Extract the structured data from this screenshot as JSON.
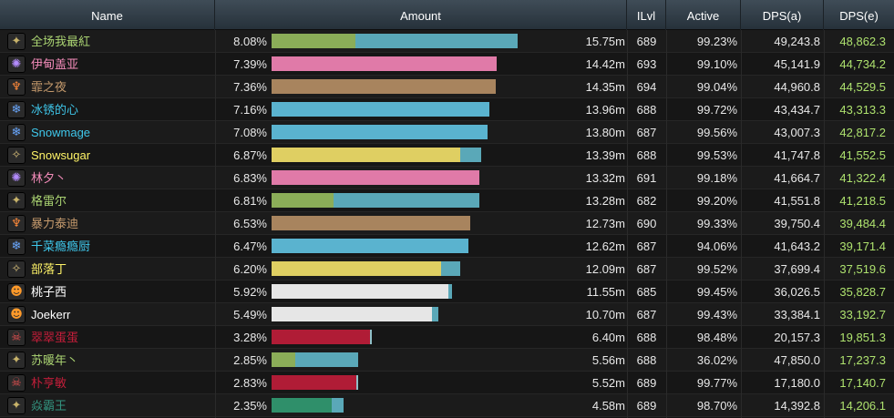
{
  "columns": {
    "name": "Name",
    "amount": "Amount",
    "ilvl": "ILvl",
    "active": "Active",
    "dps_a": "DPS(a)",
    "dps_e": "DPS(e)"
  },
  "players": [
    {
      "name": "全场我最紅",
      "pct": "8.08%",
      "total": "15.75m",
      "ilvl": "689",
      "active": "99.23%",
      "dps_a": "49,243.8",
      "dps_e": "48,862.3",
      "name_color": "#aad372",
      "icon": "rogue-icon",
      "icon_glyph": "✦",
      "icon_color": "#c8b36a",
      "share": 0.0808,
      "split": [
        0.34,
        0.66
      ],
      "bar_colors": [
        "#8bad58",
        "#5aa8b8"
      ]
    },
    {
      "name": "伊甸盖亚",
      "pct": "7.39%",
      "total": "14.42m",
      "ilvl": "693",
      "active": "99.10%",
      "dps_a": "45,141.9",
      "dps_e": "44,734.2",
      "name_color": "#f48cba",
      "icon": "arcane-icon",
      "icon_glyph": "✺",
      "icon_color": "#b48cff",
      "share": 0.0739,
      "split": [
        1.0
      ],
      "bar_colors": [
        "#e07aa8"
      ]
    },
    {
      "name": "霏之夜",
      "pct": "7.36%",
      "total": "14.35m",
      "ilvl": "694",
      "active": "99.04%",
      "dps_a": "44,960.8",
      "dps_e": "44,529.5",
      "name_color": "#c69b6d",
      "icon": "demon-icon",
      "icon_glyph": "♆",
      "icon_color": "#ff8a3a",
      "share": 0.0736,
      "split": [
        1.0
      ],
      "bar_colors": [
        "#a8845e"
      ]
    },
    {
      "name": "冰锈的心",
      "pct": "7.16%",
      "total": "13.96m",
      "ilvl": "688",
      "active": "99.72%",
      "dps_a": "43,434.7",
      "dps_e": "43,313.3",
      "name_color": "#3fc7eb",
      "icon": "frost-icon",
      "icon_glyph": "❄",
      "icon_color": "#6aa8ff",
      "share": 0.0716,
      "split": [
        1.0
      ],
      "bar_colors": [
        "#5ab3cf"
      ]
    },
    {
      "name": "Snowmage",
      "pct": "7.08%",
      "total": "13.80m",
      "ilvl": "687",
      "active": "99.56%",
      "dps_a": "43,007.3",
      "dps_e": "42,817.2",
      "name_color": "#3fc7eb",
      "icon": "frost-icon",
      "icon_glyph": "❄",
      "icon_color": "#6aa8ff",
      "share": 0.0708,
      "split": [
        1.0
      ],
      "bar_colors": [
        "#5ab3cf"
      ]
    },
    {
      "name": "Snowsugar",
      "pct": "6.87%",
      "total": "13.39m",
      "ilvl": "688",
      "active": "99.53%",
      "dps_a": "41,747.8",
      "dps_e": "41,552.5",
      "name_color": "#fff468",
      "icon": "rogue-icon",
      "icon_glyph": "✧",
      "icon_color": "#d9c07a",
      "share": 0.0687,
      "split": [
        0.9,
        0.1
      ],
      "bar_colors": [
        "#dfcf62",
        "#5aa8b8"
      ]
    },
    {
      "name": "林夕丶",
      "pct": "6.83%",
      "total": "13.32m",
      "ilvl": "691",
      "active": "99.18%",
      "dps_a": "41,664.7",
      "dps_e": "41,322.4",
      "name_color": "#f48cba",
      "icon": "arcane-icon",
      "icon_glyph": "✺",
      "icon_color": "#b48cff",
      "share": 0.0683,
      "split": [
        1.0
      ],
      "bar_colors": [
        "#e07aa8"
      ]
    },
    {
      "name": "格雷尔",
      "pct": "6.81%",
      "total": "13.28m",
      "ilvl": "682",
      "active": "99.20%",
      "dps_a": "41,551.8",
      "dps_e": "41,218.5",
      "name_color": "#aad372",
      "icon": "rogue-icon",
      "icon_glyph": "✦",
      "icon_color": "#c8b36a",
      "share": 0.0681,
      "split": [
        0.3,
        0.7
      ],
      "bar_colors": [
        "#8bad58",
        "#5aa8b8"
      ]
    },
    {
      "name": "暴力泰迪",
      "pct": "6.53%",
      "total": "12.73m",
      "ilvl": "690",
      "active": "99.33%",
      "dps_a": "39,750.4",
      "dps_e": "39,484.4",
      "name_color": "#c69b6d",
      "icon": "demon-icon",
      "icon_glyph": "♆",
      "icon_color": "#ff8a3a",
      "share": 0.0653,
      "split": [
        1.0
      ],
      "bar_colors": [
        "#a8845e"
      ]
    },
    {
      "name": "千菜瘾瘾厨",
      "pct": "6.47%",
      "total": "12.62m",
      "ilvl": "687",
      "active": "94.06%",
      "dps_a": "41,643.2",
      "dps_e": "39,171.4",
      "name_color": "#3fc7eb",
      "icon": "frost-icon",
      "icon_glyph": "❄",
      "icon_color": "#6aa8ff",
      "share": 0.0647,
      "split": [
        1.0
      ],
      "bar_colors": [
        "#5ab3cf"
      ]
    },
    {
      "name": "部落丁",
      "pct": "6.20%",
      "total": "12.09m",
      "ilvl": "687",
      "active": "99.52%",
      "dps_a": "37,699.4",
      "dps_e": "37,519.6",
      "name_color": "#fff468",
      "icon": "rogue-icon",
      "icon_glyph": "✧",
      "icon_color": "#d9c07a",
      "share": 0.062,
      "split": [
        0.9,
        0.1
      ],
      "bar_colors": [
        "#dfcf62",
        "#5aa8b8"
      ]
    },
    {
      "name": "桃子西",
      "pct": "5.92%",
      "total": "11.55m",
      "ilvl": "685",
      "active": "99.45%",
      "dps_a": "36,026.5",
      "dps_e": "35,828.7",
      "name_color": "#ffffff",
      "icon": "skull-icon",
      "icon_glyph": "☻",
      "icon_color": "#ff9a2a",
      "share": 0.0592,
      "split": [
        0.98,
        0.02
      ],
      "bar_colors": [
        "#e6e6e6",
        "#5aa8b8"
      ]
    },
    {
      "name": "Joekerr",
      "pct": "5.49%",
      "total": "10.70m",
      "ilvl": "687",
      "active": "99.43%",
      "dps_a": "33,384.1",
      "dps_e": "33,192.7",
      "name_color": "#ffffff",
      "icon": "skull-icon",
      "icon_glyph": "☻",
      "icon_color": "#ff9a2a",
      "share": 0.0549,
      "split": [
        0.96,
        0.04
      ],
      "bar_colors": [
        "#e6e6e6",
        "#5aa8b8"
      ]
    },
    {
      "name": "翠翠蛋蛋",
      "pct": "3.28%",
      "total": "6.40m",
      "ilvl": "688",
      "active": "98.48%",
      "dps_a": "20,157.3",
      "dps_e": "19,851.3",
      "name_color": "#c41e3a",
      "icon": "blood-icon",
      "icon_glyph": "☠",
      "icon_color": "#e05050",
      "share": 0.0328,
      "split": [
        0.98,
        0.02
      ],
      "bar_colors": [
        "#b01c36",
        "#8fc0c8"
      ]
    },
    {
      "name": "苏暖年丶",
      "pct": "2.85%",
      "total": "5.56m",
      "ilvl": "688",
      "active": "36.02%",
      "dps_a": "47,850.0",
      "dps_e": "17,237.3",
      "name_color": "#aad372",
      "icon": "rogue-icon",
      "icon_glyph": "✦",
      "icon_color": "#c8b36a",
      "share": 0.0285,
      "split": [
        0.27,
        0.73
      ],
      "bar_colors": [
        "#8bad58",
        "#5aa8b8"
      ]
    },
    {
      "name": "朴亨敏",
      "pct": "2.83%",
      "total": "5.52m",
      "ilvl": "689",
      "active": "99.77%",
      "dps_a": "17,180.0",
      "dps_e": "17,140.7",
      "name_color": "#c41e3a",
      "icon": "blood-icon",
      "icon_glyph": "☠",
      "icon_color": "#e05050",
      "share": 0.0283,
      "split": [
        0.98,
        0.02
      ],
      "bar_colors": [
        "#b01c36",
        "#8fc0c8"
      ]
    },
    {
      "name": "焱霸王",
      "pct": "2.35%",
      "total": "4.58m",
      "ilvl": "689",
      "active": "98.70%",
      "dps_a": "14,392.8",
      "dps_e": "14,206.1",
      "name_color": "#33937f",
      "icon": "rogue-icon",
      "icon_glyph": "✦",
      "icon_color": "#c8b36a",
      "share": 0.0235,
      "split": [
        0.83,
        0.17
      ],
      "bar_colors": [
        "#2f8f6a",
        "#5aa8b8"
      ]
    }
  ],
  "colors": {
    "header_top": "#3f4c57",
    "header_bottom": "#26313a",
    "dps_e_text": "#aee26e"
  }
}
